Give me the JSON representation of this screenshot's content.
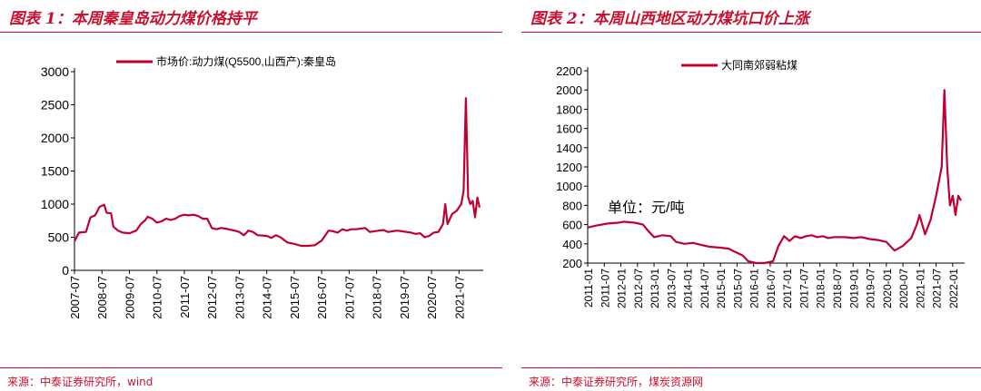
{
  "left_panel": {
    "title": "图表 1：本周秦皇岛动力煤价格持平",
    "source": "来源：中泰证券研究所，wind"
  },
  "right_panel": {
    "title": "图表 2：本周山西地区动力煤坑口价上涨",
    "source": "来源：中泰证券研究所，煤炭资源网"
  },
  "colors": {
    "accent": "#c8102e",
    "line": "#c00031"
  },
  "chart_data": [
    {
      "type": "line",
      "title": "",
      "legend": "top-center",
      "series": [
        {
          "name": "市场价:动力煤(Q5500,山西产):秦皇岛",
          "points": [
            [
              "2007-07",
              440
            ],
            [
              "2007-09",
              570
            ],
            [
              "2007-12",
              580
            ],
            [
              "2008-02",
              800
            ],
            [
              "2008-04",
              830
            ],
            [
              "2008-06",
              960
            ],
            [
              "2008-08",
              990
            ],
            [
              "2008-09",
              870
            ],
            [
              "2008-11",
              860
            ],
            [
              "2008-12",
              660
            ],
            [
              "2009-02",
              600
            ],
            [
              "2009-04",
              570
            ],
            [
              "2009-07",
              560
            ],
            [
              "2009-10",
              600
            ],
            [
              "2009-12",
              700
            ],
            [
              "2010-02",
              760
            ],
            [
              "2010-03",
              810
            ],
            [
              "2010-05",
              780
            ],
            [
              "2010-07",
              720
            ],
            [
              "2010-09",
              740
            ],
            [
              "2010-11",
              780
            ],
            [
              "2011-01",
              760
            ],
            [
              "2011-03",
              780
            ],
            [
              "2011-05",
              820
            ],
            [
              "2011-07",
              840
            ],
            [
              "2011-09",
              830
            ],
            [
              "2011-11",
              840
            ],
            [
              "2012-01",
              820
            ],
            [
              "2012-03",
              780
            ],
            [
              "2012-05",
              780
            ],
            [
              "2012-07",
              640
            ],
            [
              "2012-09",
              620
            ],
            [
              "2012-11",
              640
            ],
            [
              "2013-01",
              630
            ],
            [
              "2013-05",
              600
            ],
            [
              "2013-07",
              580
            ],
            [
              "2013-09",
              530
            ],
            [
              "2013-11",
              600
            ],
            [
              "2014-01",
              580
            ],
            [
              "2014-03",
              530
            ],
            [
              "2014-07",
              520
            ],
            [
              "2014-09",
              490
            ],
            [
              "2014-11",
              530
            ],
            [
              "2015-01",
              500
            ],
            [
              "2015-04",
              420
            ],
            [
              "2015-07",
              400
            ],
            [
              "2015-10",
              370
            ],
            [
              "2016-01",
              370
            ],
            [
              "2016-04",
              380
            ],
            [
              "2016-07",
              450
            ],
            [
              "2016-10",
              600
            ],
            [
              "2016-12",
              590
            ],
            [
              "2017-02",
              570
            ],
            [
              "2017-04",
              620
            ],
            [
              "2017-06",
              600
            ],
            [
              "2017-08",
              620
            ],
            [
              "2017-10",
              620
            ],
            [
              "2017-12",
              630
            ],
            [
              "2018-02",
              640
            ],
            [
              "2018-04",
              580
            ],
            [
              "2018-06",
              590
            ],
            [
              "2018-08",
              600
            ],
            [
              "2018-10",
              610
            ],
            [
              "2018-12",
              580
            ],
            [
              "2019-02",
              590
            ],
            [
              "2019-04",
              600
            ],
            [
              "2019-06",
              590
            ],
            [
              "2019-08",
              580
            ],
            [
              "2019-10",
              570
            ],
            [
              "2019-12",
              550
            ],
            [
              "2020-02",
              560
            ],
            [
              "2020-04",
              500
            ],
            [
              "2020-06",
              520
            ],
            [
              "2020-08",
              570
            ],
            [
              "2020-10",
              580
            ],
            [
              "2020-12",
              700
            ],
            [
              "2021-01",
              1000
            ],
            [
              "2021-02",
              700
            ],
            [
              "2021-04",
              850
            ],
            [
              "2021-06",
              900
            ],
            [
              "2021-08",
              1000
            ],
            [
              "2021-09",
              1200
            ],
            [
              "2021-10",
              2600
            ],
            [
              "2021-11",
              1100
            ],
            [
              "2021-12",
              1000
            ],
            [
              "2022-01",
              1050
            ],
            [
              "2022-02",
              800
            ],
            [
              "2022-03",
              1100
            ],
            [
              "2022-04",
              950
            ]
          ]
        }
      ],
      "y_ticks": [
        "0",
        "500",
        "1000",
        "1500",
        "2000",
        "2500",
        "3000"
      ],
      "x_ticks": [
        "2007-07",
        "2008-07",
        "2009-07",
        "2010-07",
        "2011-07",
        "2012-07",
        "2013-07",
        "2014-07",
        "2015-07",
        "2016-07",
        "2017-07",
        "2018-07",
        "2019-07",
        "2020-07",
        "2021-07"
      ],
      "ylim": [
        0,
        3000
      ]
    },
    {
      "type": "line",
      "title": "",
      "legend": "top-center",
      "annotation": "单位：元/吨",
      "series": [
        {
          "name": "大同南郊弱粘煤",
          "points": [
            [
              "2011-01",
              570
            ],
            [
              "2011-04",
              590
            ],
            [
              "2011-08",
              610
            ],
            [
              "2011-12",
              620
            ],
            [
              "2012-02",
              630
            ],
            [
              "2012-06",
              620
            ],
            [
              "2012-09",
              600
            ],
            [
              "2012-11",
              530
            ],
            [
              "2013-01",
              470
            ],
            [
              "2013-04",
              490
            ],
            [
              "2013-07",
              480
            ],
            [
              "2013-09",
              420
            ],
            [
              "2013-12",
              400
            ],
            [
              "2014-03",
              410
            ],
            [
              "2014-06",
              390
            ],
            [
              "2014-09",
              370
            ],
            [
              "2015-01",
              360
            ],
            [
              "2015-04",
              350
            ],
            [
              "2015-06",
              320
            ],
            [
              "2015-09",
              280
            ],
            [
              "2015-11",
              220
            ],
            [
              "2016-02",
              200
            ],
            [
              "2016-05",
              200
            ],
            [
              "2016-08",
              220
            ],
            [
              "2016-10",
              380
            ],
            [
              "2016-12",
              480
            ],
            [
              "2017-02",
              430
            ],
            [
              "2017-04",
              480
            ],
            [
              "2017-06",
              460
            ],
            [
              "2017-08",
              480
            ],
            [
              "2017-10",
              490
            ],
            [
              "2017-12",
              470
            ],
            [
              "2018-02",
              480
            ],
            [
              "2018-04",
              460
            ],
            [
              "2018-06",
              470
            ],
            [
              "2018-08",
              470
            ],
            [
              "2018-10",
              470
            ],
            [
              "2019-01",
              460
            ],
            [
              "2019-04",
              470
            ],
            [
              "2019-07",
              450
            ],
            [
              "2019-10",
              440
            ],
            [
              "2020-01",
              420
            ],
            [
              "2020-04",
              330
            ],
            [
              "2020-07",
              380
            ],
            [
              "2020-10",
              460
            ],
            [
              "2020-12",
              600
            ],
            [
              "2021-01",
              700
            ],
            [
              "2021-03",
              500
            ],
            [
              "2021-05",
              650
            ],
            [
              "2021-07",
              900
            ],
            [
              "2021-09",
              1200
            ],
            [
              "2021-10",
              2000
            ],
            [
              "2021-11",
              1200
            ],
            [
              "2021-12",
              800
            ],
            [
              "2022-01",
              900
            ],
            [
              "2022-02",
              700
            ],
            [
              "2022-03",
              900
            ],
            [
              "2022-04",
              850
            ]
          ]
        }
      ],
      "y_ticks": [
        "200",
        "400",
        "600",
        "800",
        "1000",
        "1200",
        "1400",
        "1600",
        "1800",
        "2000",
        "2200"
      ],
      "x_ticks": [
        "2011-01",
        "2011-07",
        "2012-01",
        "2012-07",
        "2013-01",
        "2013-07",
        "2014-01",
        "2014-07",
        "2015-01",
        "2015-07",
        "2016-01",
        "2016-07",
        "2017-01",
        "2017-07",
        "2018-01",
        "2018-07",
        "2019-01",
        "2019-07",
        "2020-01",
        "2020-07",
        "2021-01",
        "2021-07",
        "2022-01"
      ],
      "ylim": [
        200,
        2200
      ]
    }
  ]
}
